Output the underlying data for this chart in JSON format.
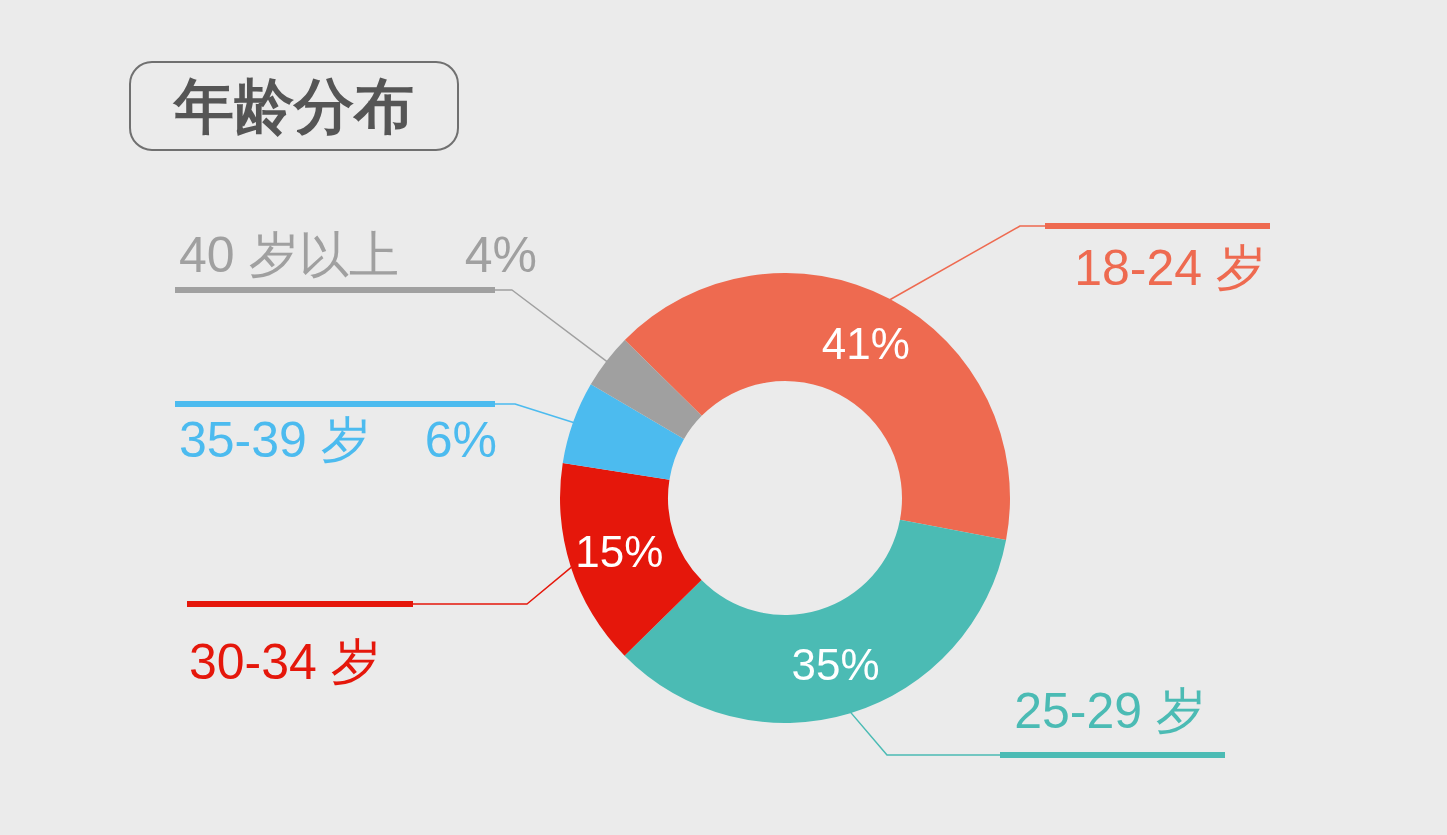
{
  "chart_data": {
    "type": "donut",
    "title": "年龄分布",
    "categories": [
      "18-24 岁",
      "25-29 岁",
      "30-34 岁",
      "35-39 岁",
      "40 岁以上"
    ],
    "values": [
      41,
      35,
      15,
      6,
      4
    ],
    "colors": [
      "#ee6a50",
      "#4bbbb4",
      "#e5170b",
      "#4cbbef",
      "#a0a0a0"
    ],
    "value_labels": [
      "41%",
      "35%",
      "15%",
      "6%",
      "4%"
    ]
  }
}
